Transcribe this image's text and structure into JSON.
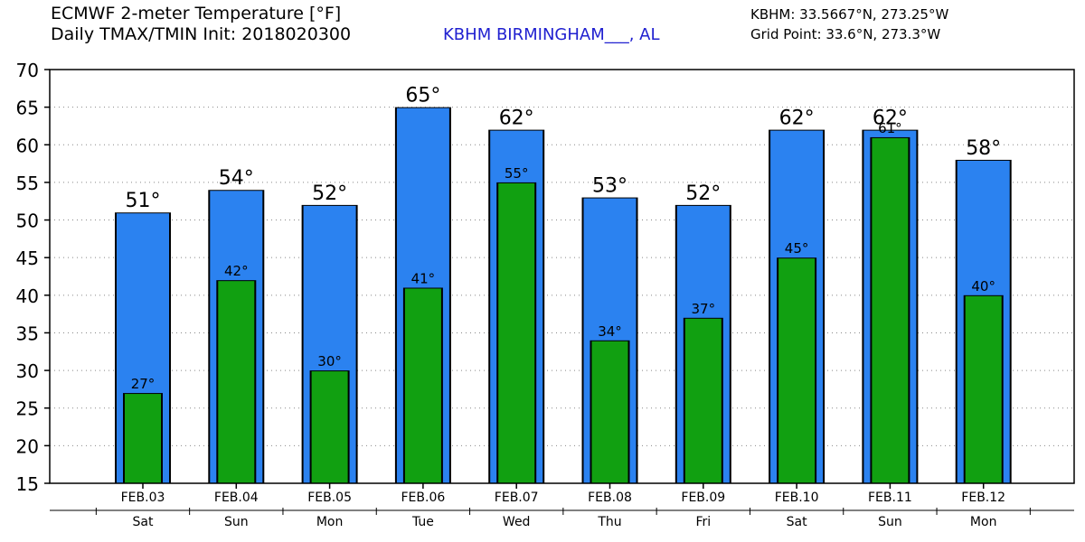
{
  "header": {
    "title_line1": "ECMWF 2-meter Temperature [°F]",
    "title_line2": "Daily TMAX/TMIN Init: 2018020300",
    "station": "KBHM BIRMINGHAM___, AL",
    "coords_line1": "KBHM: 33.5667°N, 273.25°W",
    "coords_line2": "Grid Point: 33.6°N, 273.3°W"
  },
  "colors": {
    "tmax": "#2b82f0",
    "tmin": "#11a011",
    "gridline": "#888888",
    "station_text": "#2020d0"
  },
  "chart_data": {
    "type": "bar",
    "title": "ECMWF 2-meter Temperature [°F]",
    "categories": [
      "FEB.03",
      "FEB.04",
      "FEB.05",
      "FEB.06",
      "FEB.07",
      "FEB.08",
      "FEB.09",
      "FEB.10",
      "FEB.11",
      "FEB.12"
    ],
    "weekdays": [
      "Sat",
      "Sun",
      "Mon",
      "Tue",
      "Wed",
      "Thu",
      "Fri",
      "Sat",
      "Sun",
      "Mon"
    ],
    "series": [
      {
        "name": "TMAX",
        "values": [
          51,
          54,
          52,
          65,
          62,
          53,
          52,
          62,
          62,
          58
        ],
        "labels": [
          "51°",
          "54°",
          "52°",
          "65°",
          "62°",
          "53°",
          "52°",
          "62°",
          "62°",
          "58°"
        ]
      },
      {
        "name": "TMIN",
        "values": [
          27,
          42,
          30,
          41,
          55,
          34,
          37,
          45,
          61,
          40
        ],
        "labels": [
          "27°",
          "42°",
          "30°",
          "41°",
          "55°",
          "34°",
          "37°",
          "45°",
          "61°",
          "40°"
        ]
      }
    ],
    "ylim": [
      15,
      70
    ],
    "yticks": [
      15,
      20,
      25,
      30,
      35,
      40,
      45,
      50,
      55,
      60,
      65,
      70
    ],
    "grid": true
  }
}
